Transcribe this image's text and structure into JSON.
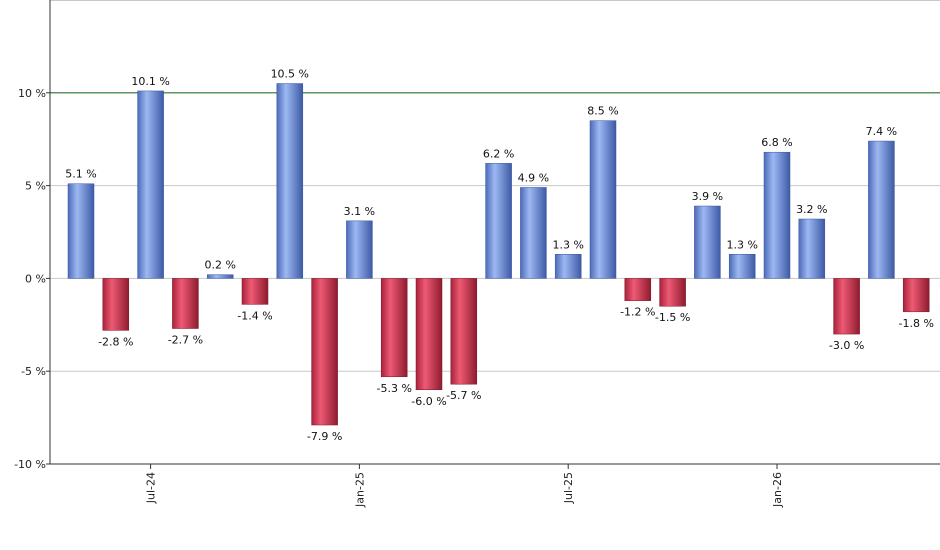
{
  "chart_data": {
    "type": "bar",
    "title": "",
    "xlabel": "",
    "ylabel": "",
    "ylim": [
      -10,
      15
    ],
    "y_ticks": [
      {
        "value": 10,
        "label": "10 %"
      },
      {
        "value": 5,
        "label": "5 %"
      },
      {
        "value": 0,
        "label": "0 %"
      },
      {
        "value": -5,
        "label": "-5 %"
      },
      {
        "value": -10,
        "label": "-10 %"
      }
    ],
    "x_ticks": [
      {
        "index": 2,
        "label": "Jul-24"
      },
      {
        "index": 8,
        "label": "Jan-25"
      },
      {
        "index": 14,
        "label": "Jul-25"
      },
      {
        "index": 20,
        "label": "Jan-26"
      }
    ],
    "reference_line": {
      "value": 10,
      "color": "#2e7d32"
    },
    "grid": true,
    "colors": {
      "positive": "#6f8fd8",
      "negative": "#c8384f",
      "grid": "#c8c8c8",
      "axis": "#333333"
    },
    "values": [
      5.1,
      -2.8,
      10.1,
      -2.7,
      0.2,
      -1.4,
      10.5,
      -7.9,
      3.1,
      -5.3,
      -6.0,
      -5.7,
      6.2,
      4.9,
      1.3,
      8.5,
      -1.2,
      -1.5,
      3.9,
      1.3,
      6.8,
      3.2,
      -3.0,
      7.4,
      -1.8
    ],
    "labels": [
      "5.1 %",
      "-2.8 %",
      "10.1 %",
      "-2.7 %",
      "0.2 %",
      "-1.4 %",
      "10.5 %",
      "-7.9 %",
      "3.1 %",
      "-5.3 %",
      "-6.0 %",
      "-5.7 %",
      "6.2 %",
      "4.9 %",
      "1.3 %",
      "8.5 %",
      "-1.2 %",
      "-1.5 %",
      "3.9 %",
      "1.3 %",
      "6.8 %",
      "3.2 %",
      "-3.0 %",
      "7.4 %",
      "-1.8 %"
    ]
  }
}
